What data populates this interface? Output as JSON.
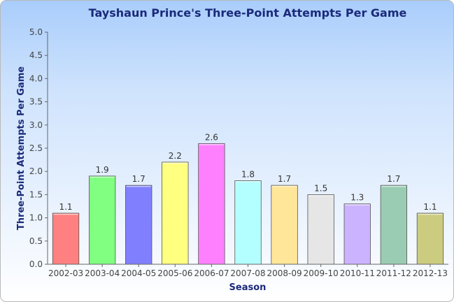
{
  "chart_data": {
    "type": "bar",
    "title": "Tayshaun Prince's Three-Point Attempts Per Game",
    "xlabel": "Season",
    "ylabel": "Three-Point Attempts Per Game",
    "categories": [
      "2002-03",
      "2003-04",
      "2004-05",
      "2005-06",
      "2006-07",
      "2007-08",
      "2008-09",
      "2009-10",
      "2010-11",
      "2011-12",
      "2012-13"
    ],
    "values": [
      1.1,
      1.9,
      1.7,
      2.2,
      2.6,
      1.8,
      1.7,
      1.5,
      1.3,
      1.7,
      1.1
    ],
    "value_labels": [
      "1.1",
      "1.9",
      "1.7",
      "2.2",
      "2.6",
      "1.8",
      "1.7",
      "1.5",
      "1.3",
      "1.7",
      "1.1"
    ],
    "ylim": [
      0,
      5
    ],
    "yticks": [
      "0.0",
      "0.5",
      "1.0",
      "1.5",
      "2.0",
      "2.5",
      "3.0",
      "3.5",
      "4.0",
      "4.5",
      "5.0"
    ],
    "bar_colors": [
      "#ff8080",
      "#80ff80",
      "#8080ff",
      "#ffff80",
      "#ff80ff",
      "#b3ffff",
      "#ffe699",
      "#e6e6e6",
      "#ccb3ff",
      "#99ccb3",
      "#cccc80"
    ],
    "grid": false,
    "legend": "none"
  }
}
